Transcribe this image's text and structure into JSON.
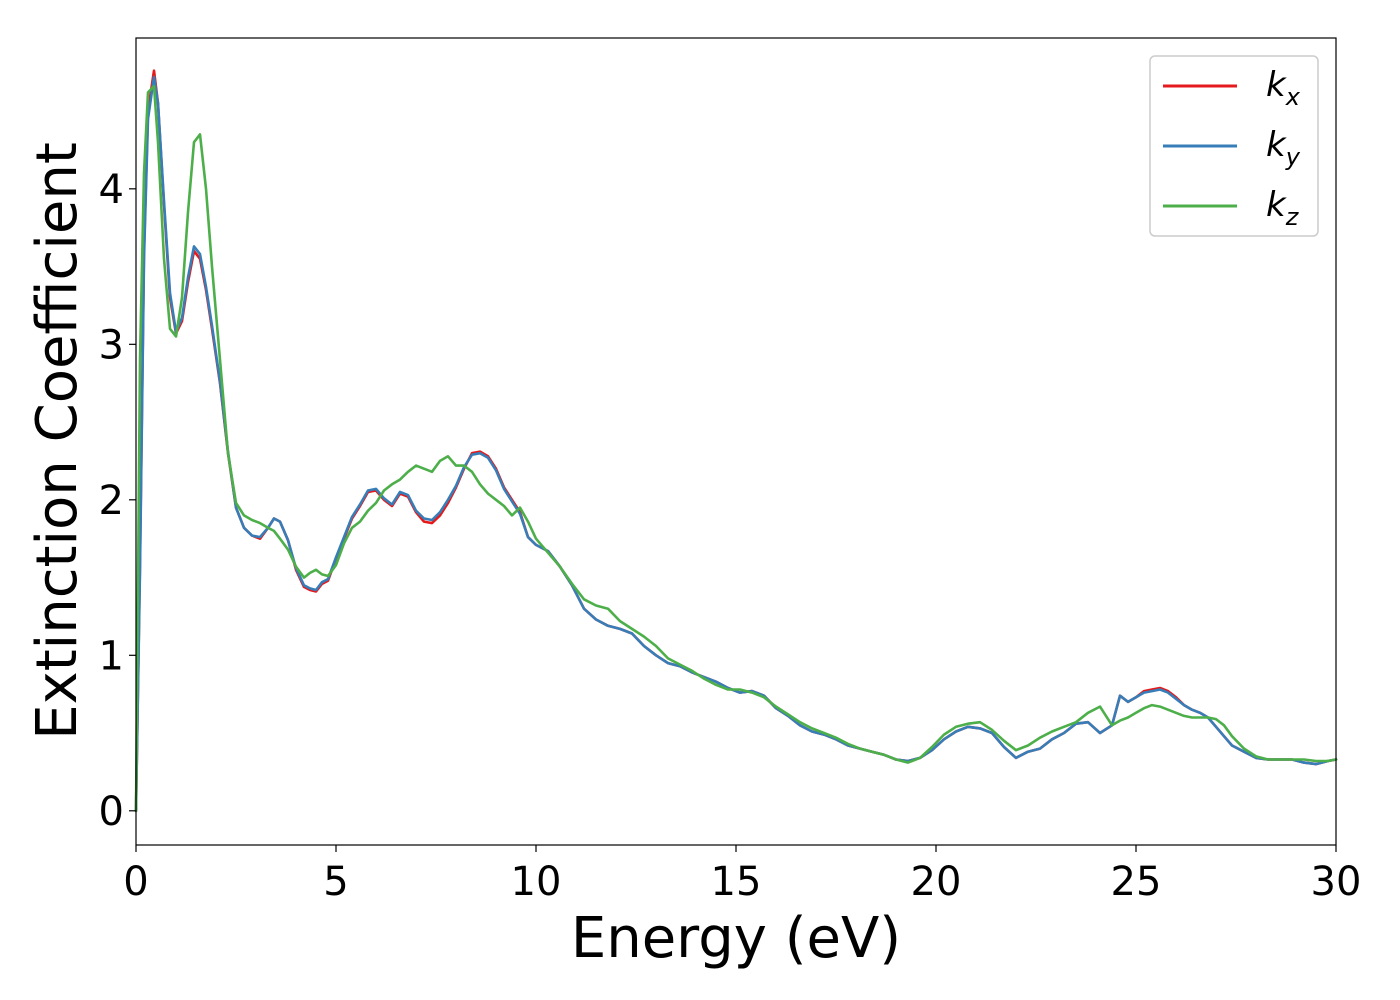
{
  "chart_data": {
    "type": "line",
    "title": "",
    "xlabel": "Energy (eV)",
    "ylabel": "Extinction Coefficient",
    "xlim": [
      0,
      30
    ],
    "ylim": [
      -0.22,
      4.97
    ],
    "xticks": [
      0,
      5,
      10,
      15,
      20,
      25,
      30
    ],
    "yticks": [
      0,
      1,
      2,
      3,
      4
    ],
    "grid": false,
    "legend_position": "top-right",
    "x": [
      0,
      0.1,
      0.2,
      0.3,
      0.45,
      0.55,
      0.7,
      0.85,
      1.0,
      1.15,
      1.3,
      1.45,
      1.6,
      1.75,
      1.9,
      2.1,
      2.3,
      2.5,
      2.7,
      2.9,
      3.1,
      3.3,
      3.45,
      3.6,
      3.8,
      4.0,
      4.2,
      4.35,
      4.5,
      4.65,
      4.8,
      5.0,
      5.2,
      5.4,
      5.6,
      5.8,
      6.0,
      6.2,
      6.4,
      6.6,
      6.8,
      7.0,
      7.2,
      7.4,
      7.6,
      7.8,
      8.0,
      8.2,
      8.4,
      8.6,
      8.8,
      9.0,
      9.2,
      9.4,
      9.6,
      9.8,
      10.0,
      10.3,
      10.6,
      10.9,
      11.2,
      11.5,
      11.8,
      12.1,
      12.4,
      12.7,
      13.0,
      13.3,
      13.6,
      13.9,
      14.2,
      14.5,
      14.8,
      15.1,
      15.4,
      15.7,
      16.0,
      16.3,
      16.6,
      16.9,
      17.2,
      17.5,
      17.8,
      18.1,
      18.4,
      18.7,
      19.0,
      19.3,
      19.6,
      19.9,
      20.2,
      20.5,
      20.8,
      21.1,
      21.4,
      21.7,
      22.0,
      22.3,
      22.6,
      22.9,
      23.2,
      23.5,
      23.8,
      24.1,
      24.4,
      24.6,
      24.8,
      25.0,
      25.2,
      25.4,
      25.6,
      25.8,
      26.0,
      26.2,
      26.4,
      26.6,
      26.8,
      27.0,
      27.2,
      27.4,
      27.7,
      28.0,
      28.3,
      28.6,
      28.9,
      29.2,
      29.5,
      29.8,
      30.0
    ],
    "series": [
      {
        "name": "k_x",
        "label_base": "k",
        "label_sub": "x",
        "color": "#e41a1c",
        "values": [
          0,
          1.6,
          3.6,
          4.5,
          4.76,
          4.55,
          3.9,
          3.3,
          3.07,
          3.15,
          3.4,
          3.6,
          3.55,
          3.35,
          3.1,
          2.75,
          2.3,
          1.95,
          1.82,
          1.77,
          1.75,
          1.82,
          1.88,
          1.86,
          1.74,
          1.55,
          1.44,
          1.42,
          1.41,
          1.46,
          1.48,
          1.62,
          1.75,
          1.88,
          1.96,
          2.05,
          2.06,
          2.0,
          1.96,
          2.04,
          2.02,
          1.92,
          1.86,
          1.85,
          1.9,
          1.98,
          2.08,
          2.2,
          2.3,
          2.31,
          2.28,
          2.2,
          2.08,
          2.0,
          1.92,
          1.76,
          1.71,
          1.67,
          1.57,
          1.45,
          1.3,
          1.23,
          1.19,
          1.17,
          1.14,
          1.06,
          1.0,
          0.95,
          0.93,
          0.89,
          0.86,
          0.83,
          0.79,
          0.76,
          0.77,
          0.74,
          0.66,
          0.61,
          0.55,
          0.51,
          0.49,
          0.46,
          0.42,
          0.4,
          0.38,
          0.36,
          0.33,
          0.32,
          0.34,
          0.39,
          0.46,
          0.51,
          0.54,
          0.53,
          0.5,
          0.41,
          0.34,
          0.38,
          0.4,
          0.46,
          0.5,
          0.56,
          0.57,
          0.5,
          0.55,
          0.74,
          0.7,
          0.73,
          0.77,
          0.78,
          0.79,
          0.77,
          0.73,
          0.68,
          0.65,
          0.63,
          0.6,
          0.54,
          0.48,
          0.42,
          0.38,
          0.34,
          0.33,
          0.33,
          0.33,
          0.31,
          0.3,
          0.32,
          0.33
        ]
      },
      {
        "name": "k_y",
        "label_base": "k",
        "label_sub": "y",
        "color": "#377eb8",
        "values": [
          0,
          1.55,
          3.55,
          4.45,
          4.72,
          4.55,
          3.92,
          3.33,
          3.08,
          3.17,
          3.43,
          3.63,
          3.58,
          3.37,
          3.12,
          2.76,
          2.31,
          1.95,
          1.82,
          1.77,
          1.76,
          1.82,
          1.88,
          1.86,
          1.74,
          1.56,
          1.45,
          1.43,
          1.42,
          1.47,
          1.49,
          1.63,
          1.76,
          1.89,
          1.97,
          2.06,
          2.07,
          2.01,
          1.97,
          2.05,
          2.03,
          1.93,
          1.88,
          1.87,
          1.92,
          2.0,
          2.09,
          2.21,
          2.29,
          2.3,
          2.27,
          2.19,
          2.07,
          1.99,
          1.91,
          1.76,
          1.71,
          1.67,
          1.57,
          1.45,
          1.3,
          1.23,
          1.19,
          1.17,
          1.14,
          1.06,
          1.0,
          0.95,
          0.93,
          0.89,
          0.86,
          0.83,
          0.79,
          0.76,
          0.77,
          0.74,
          0.66,
          0.61,
          0.55,
          0.51,
          0.49,
          0.46,
          0.42,
          0.4,
          0.38,
          0.36,
          0.33,
          0.32,
          0.34,
          0.39,
          0.46,
          0.51,
          0.54,
          0.53,
          0.5,
          0.41,
          0.34,
          0.38,
          0.4,
          0.46,
          0.5,
          0.56,
          0.57,
          0.5,
          0.55,
          0.74,
          0.7,
          0.73,
          0.76,
          0.77,
          0.78,
          0.76,
          0.72,
          0.68,
          0.65,
          0.63,
          0.6,
          0.54,
          0.48,
          0.42,
          0.38,
          0.34,
          0.33,
          0.33,
          0.33,
          0.31,
          0.3,
          0.32,
          0.33
        ]
      },
      {
        "name": "k_z",
        "label_base": "k",
        "label_sub": "z",
        "color": "#4daf4a",
        "values": [
          0,
          2.9,
          4.1,
          4.62,
          4.66,
          4.3,
          3.55,
          3.1,
          3.05,
          3.3,
          3.85,
          4.3,
          4.35,
          4.0,
          3.5,
          2.9,
          2.3,
          1.98,
          1.9,
          1.87,
          1.85,
          1.82,
          1.8,
          1.75,
          1.68,
          1.57,
          1.5,
          1.53,
          1.55,
          1.52,
          1.51,
          1.58,
          1.72,
          1.82,
          1.86,
          1.93,
          1.98,
          2.06,
          2.1,
          2.13,
          2.18,
          2.22,
          2.2,
          2.18,
          2.25,
          2.28,
          2.22,
          2.22,
          2.18,
          2.1,
          2.04,
          2.0,
          1.96,
          1.9,
          1.95,
          1.86,
          1.75,
          1.66,
          1.57,
          1.46,
          1.36,
          1.32,
          1.3,
          1.22,
          1.17,
          1.12,
          1.06,
          0.98,
          0.94,
          0.9,
          0.85,
          0.81,
          0.78,
          0.78,
          0.76,
          0.73,
          0.67,
          0.62,
          0.57,
          0.53,
          0.5,
          0.47,
          0.43,
          0.4,
          0.38,
          0.36,
          0.33,
          0.31,
          0.34,
          0.41,
          0.49,
          0.54,
          0.56,
          0.57,
          0.52,
          0.45,
          0.39,
          0.42,
          0.47,
          0.51,
          0.54,
          0.57,
          0.63,
          0.67,
          0.55,
          0.58,
          0.6,
          0.63,
          0.66,
          0.68,
          0.67,
          0.65,
          0.63,
          0.61,
          0.6,
          0.6,
          0.6,
          0.59,
          0.55,
          0.48,
          0.4,
          0.35,
          0.33,
          0.33,
          0.33,
          0.33,
          0.32,
          0.32,
          0.33
        ]
      }
    ]
  }
}
